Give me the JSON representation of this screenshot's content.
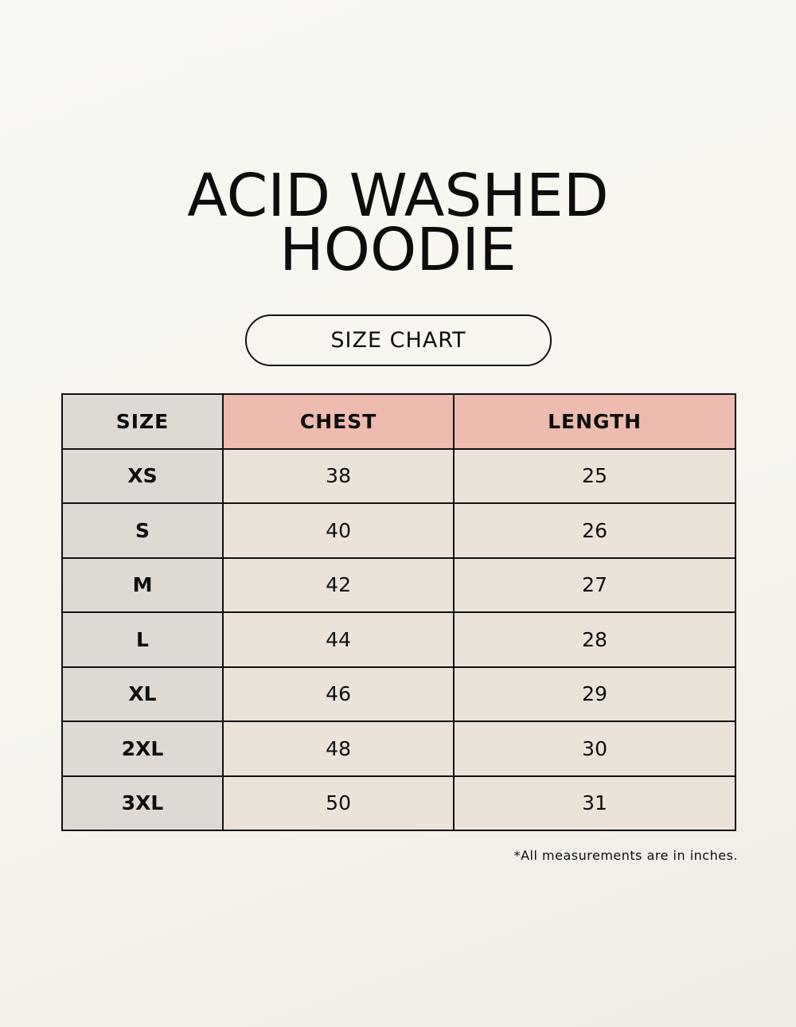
{
  "title": {
    "line1": "ACID WASHED",
    "line2": "HOODIE"
  },
  "subtitle": "SIZE CHART",
  "colors": {
    "background": "#f8f6ef",
    "header_accent": "#edbcaf",
    "size_column": "#dfd9d4",
    "cell": "#ebe3d9"
  },
  "table": {
    "headers": [
      "SIZE",
      "CHEST",
      "LENGTH"
    ],
    "rows": [
      [
        "XS",
        "38",
        "25"
      ],
      [
        "S",
        "40",
        "26"
      ],
      [
        "M",
        "42",
        "27"
      ],
      [
        "L",
        "44",
        "28"
      ],
      [
        "XL",
        "46",
        "29"
      ],
      [
        "2XL",
        "48",
        "30"
      ],
      [
        "3XL",
        "50",
        "31"
      ]
    ]
  },
  "footnote": "*All measurements are in inches."
}
